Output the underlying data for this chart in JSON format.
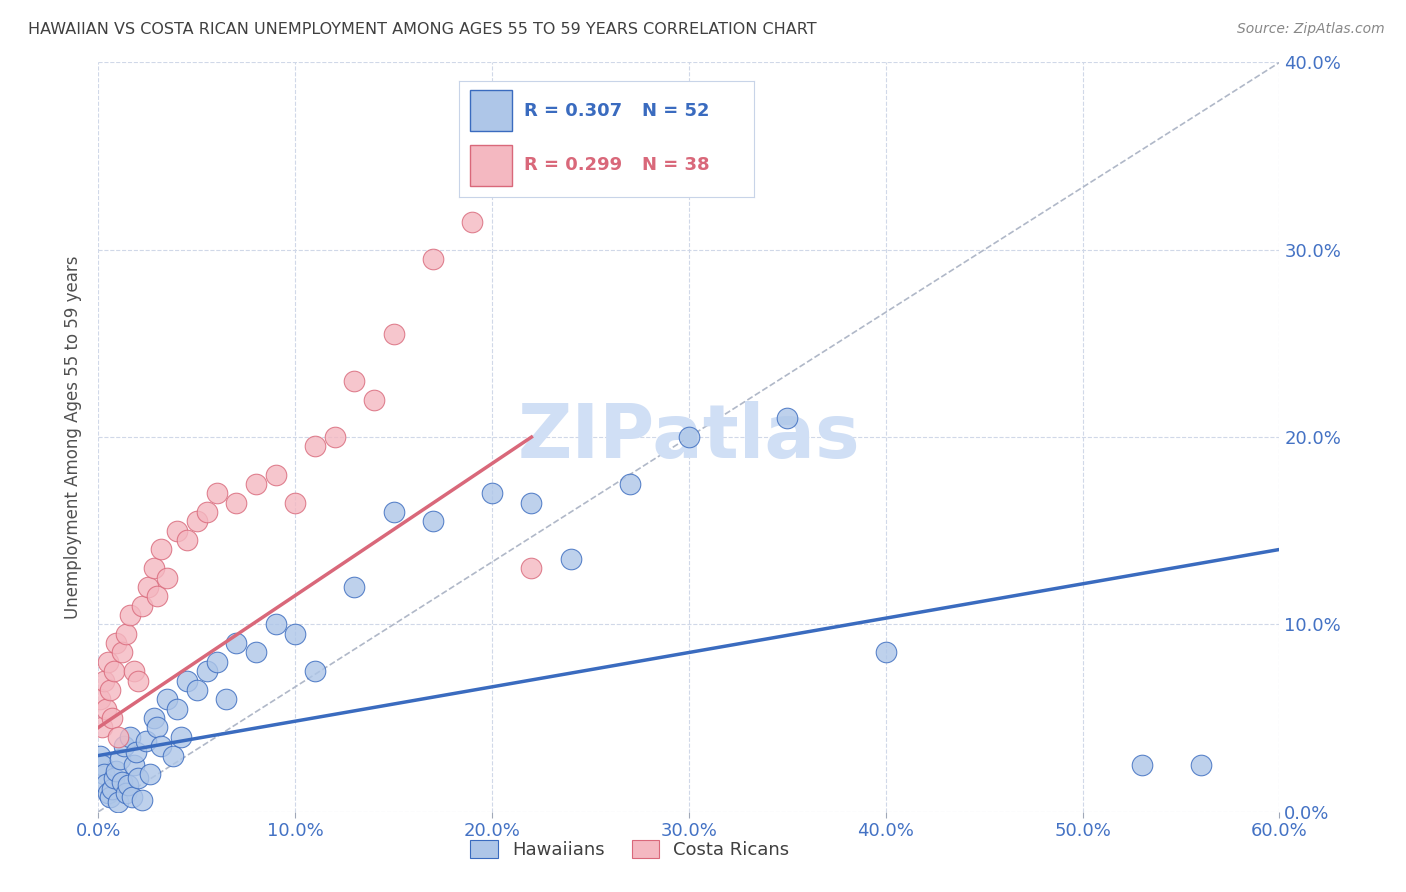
{
  "title": "HAWAIIAN VS COSTA RICAN UNEMPLOYMENT AMONG AGES 55 TO 59 YEARS CORRELATION CHART",
  "source": "Source: ZipAtlas.com",
  "ylabel": "Unemployment Among Ages 55 to 59 years",
  "xmin": 0.0,
  "xmax": 0.6,
  "ymin": 0.0,
  "ymax": 0.4,
  "xticks": [
    0.0,
    0.1,
    0.2,
    0.3,
    0.4,
    0.5,
    0.6
  ],
  "yticks": [
    0.0,
    0.1,
    0.2,
    0.3,
    0.4
  ],
  "legend_r1": "R = 0.307",
  "legend_n1": "N = 52",
  "legend_r2": "R = 0.299",
  "legend_n2": "N = 38",
  "hawaiian_color": "#aec6e8",
  "costa_rican_color": "#f4b8c1",
  "trend_blue": "#3a6bbf",
  "trend_pink": "#d9687a",
  "grid_color": "#d0d8e8",
  "title_color": "#404040",
  "axis_label_color": "#505050",
  "tick_color_blue": "#4472c4",
  "watermark_color": "#d0dff5",
  "hawaiians_x": [
    0.001,
    0.002,
    0.003,
    0.004,
    0.005,
    0.006,
    0.007,
    0.008,
    0.009,
    0.01,
    0.011,
    0.012,
    0.013,
    0.014,
    0.015,
    0.016,
    0.017,
    0.018,
    0.019,
    0.02,
    0.022,
    0.024,
    0.026,
    0.028,
    0.03,
    0.032,
    0.035,
    0.038,
    0.04,
    0.042,
    0.045,
    0.05,
    0.055,
    0.06,
    0.065,
    0.07,
    0.08,
    0.09,
    0.1,
    0.11,
    0.13,
    0.15,
    0.17,
    0.2,
    0.22,
    0.24,
    0.27,
    0.3,
    0.35,
    0.4,
    0.53,
    0.56
  ],
  "hawaiians_y": [
    0.03,
    0.025,
    0.02,
    0.015,
    0.01,
    0.008,
    0.012,
    0.018,
    0.022,
    0.005,
    0.028,
    0.016,
    0.035,
    0.01,
    0.014,
    0.04,
    0.008,
    0.025,
    0.032,
    0.018,
    0.006,
    0.038,
    0.02,
    0.05,
    0.045,
    0.035,
    0.06,
    0.03,
    0.055,
    0.04,
    0.07,
    0.065,
    0.075,
    0.08,
    0.06,
    0.09,
    0.085,
    0.1,
    0.095,
    0.075,
    0.12,
    0.16,
    0.155,
    0.17,
    0.165,
    0.135,
    0.175,
    0.2,
    0.21,
    0.085,
    0.025,
    0.025
  ],
  "costa_rican_x": [
    0.001,
    0.002,
    0.003,
    0.004,
    0.005,
    0.006,
    0.007,
    0.008,
    0.009,
    0.01,
    0.012,
    0.014,
    0.016,
    0.018,
    0.02,
    0.022,
    0.025,
    0.028,
    0.03,
    0.032,
    0.035,
    0.04,
    0.045,
    0.05,
    0.055,
    0.06,
    0.07,
    0.08,
    0.09,
    0.1,
    0.11,
    0.12,
    0.13,
    0.14,
    0.15,
    0.17,
    0.19,
    0.22
  ],
  "costa_rican_y": [
    0.06,
    0.045,
    0.07,
    0.055,
    0.08,
    0.065,
    0.05,
    0.075,
    0.09,
    0.04,
    0.085,
    0.095,
    0.105,
    0.075,
    0.07,
    0.11,
    0.12,
    0.13,
    0.115,
    0.14,
    0.125,
    0.15,
    0.145,
    0.155,
    0.16,
    0.17,
    0.165,
    0.175,
    0.18,
    0.165,
    0.195,
    0.2,
    0.23,
    0.22,
    0.255,
    0.295,
    0.315,
    0.13
  ],
  "blue_trend_start_x": 0.0,
  "blue_trend_end_x": 0.6,
  "blue_trend_start_y": 0.03,
  "blue_trend_end_y": 0.14,
  "pink_trend_start_x": 0.0,
  "pink_trend_end_x": 0.22,
  "pink_trend_start_y": 0.045,
  "pink_trend_end_y": 0.2
}
